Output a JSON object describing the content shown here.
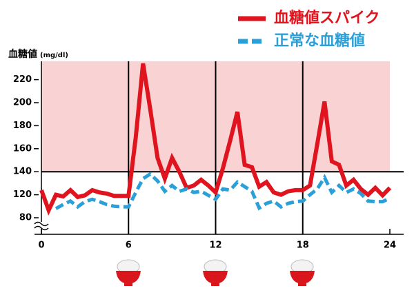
{
  "chart_data": {
    "type": "line",
    "y_label": "血糖値",
    "y_unit": "(mg/dl)",
    "x": [
      0,
      0.5,
      1,
      1.5,
      2,
      2.5,
      3,
      3.5,
      4,
      4.5,
      5,
      5.5,
      6,
      6.5,
      7,
      7.5,
      8,
      8.5,
      9,
      9.5,
      10,
      10.5,
      11,
      11.5,
      12,
      12.5,
      13,
      13.5,
      14,
      14.5,
      15,
      15.5,
      16,
      16.5,
      17,
      17.5,
      18,
      18.5,
      19,
      19.5,
      20,
      20.5,
      21,
      21.5,
      22,
      22.5,
      23,
      23.5,
      24
    ],
    "series": [
      {
        "name": "血糖値スパイク",
        "color": "#e0141e",
        "dash": false,
        "values": [
          124,
          93,
          120,
          117,
          124,
          116,
          119,
          124,
          122,
          121,
          118,
          118,
          118,
          170,
          234,
          194,
          152,
          134,
          152,
          140,
          126,
          128,
          133,
          128,
          122,
          143,
          167,
          192,
          146,
          144,
          127,
          131,
          122,
          120,
          123,
          124,
          124,
          128,
          164,
          201,
          149,
          146,
          128,
          133,
          125,
          120,
          126,
          119,
          126
        ]
      },
      {
        "name": "正常な血糖値",
        "color": "#2a9fd8",
        "dash": true,
        "values": [
          null,
          null,
          96,
          103,
          109,
          99,
          108,
          112,
          108,
          103,
          100,
          99,
          99,
          122,
          134,
          138,
          132,
          123,
          128,
          123,
          125,
          122,
          123,
          119,
          112,
          125,
          124,
          131,
          127,
          123,
          97,
          105,
          109,
          99,
          105,
          108,
          109,
          120,
          125,
          135,
          122,
          128,
          122,
          125,
          121,
          109,
          108,
          108,
          114
        ]
      }
    ],
    "xlim": [
      0,
      24
    ],
    "xticks": [
      0,
      6,
      12,
      18,
      24
    ],
    "ylim": [
      80,
      236
    ],
    "yticks": [
      80,
      120,
      140,
      160,
      180,
      200,
      220
    ],
    "y_break": true,
    "highlight_above": 140,
    "highlight_color": "#f9d3d3",
    "grid_x": true,
    "legend": "top-right"
  }
}
